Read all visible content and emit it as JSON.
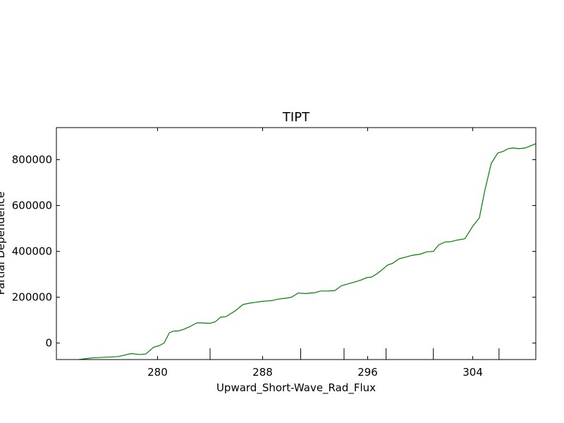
{
  "chart_data": {
    "type": "line",
    "title": "TIPT",
    "xlabel": "Upward_Short-Wave_Rad_Flux",
    "ylabel": "Partial Dependence",
    "xlim": [
      272.3,
      308.8
    ],
    "ylim": [
      -72000,
      940000
    ],
    "xticks": [
      280,
      288,
      296,
      304
    ],
    "yticks": [
      0,
      200000,
      400000,
      600000,
      800000
    ],
    "grid": false,
    "rug": [
      284.0,
      290.9,
      294.2,
      297.4,
      301.0,
      306.0
    ],
    "series": [
      {
        "color": "#008000",
        "x": [
          274.0,
          275.0,
          276.0,
          277.0,
          278.0,
          278.6,
          279.1,
          279.7,
          280.1,
          280.5,
          280.9,
          281.2,
          281.6,
          282.0,
          282.5,
          283.0,
          283.3,
          284.0,
          284.4,
          284.8,
          285.2,
          285.9,
          286.5,
          287.0,
          287.5,
          288.0,
          288.7,
          289.2,
          289.8,
          290.2,
          290.7,
          291.3,
          292.0,
          292.4,
          292.9,
          293.5,
          294.0,
          294.5,
          295.0,
          295.5,
          295.9,
          296.3,
          296.7,
          297.1,
          297.5,
          297.9,
          298.4,
          298.9,
          299.4,
          300.0,
          300.5,
          301.0,
          301.4,
          301.9,
          302.3,
          302.8,
          303.4,
          304.0,
          304.5,
          304.9,
          305.4,
          305.9,
          306.3,
          306.7,
          307.1,
          307.5,
          308.0,
          308.8
        ],
        "y": [
          -72000,
          -65000,
          -62000,
          -59000,
          -46000,
          -50000,
          -48000,
          -18000,
          -12000,
          0,
          45000,
          52000,
          53000,
          60000,
          73000,
          88000,
          88000,
          86000,
          93000,
          113000,
          115000,
          140000,
          168000,
          174000,
          178000,
          182000,
          185000,
          192000,
          196000,
          200000,
          218000,
          216000,
          220000,
          227000,
          227000,
          229000,
          250000,
          258000,
          266000,
          275000,
          285000,
          288000,
          302000,
          320000,
          340000,
          348000,
          368000,
          375000,
          383000,
          388000,
          398000,
          400000,
          428000,
          441000,
          442000,
          449000,
          455000,
          510000,
          546000,
          660000,
          783000,
          829000,
          836000,
          848000,
          851000,
          848000,
          851000,
          870000
        ]
      }
    ]
  }
}
